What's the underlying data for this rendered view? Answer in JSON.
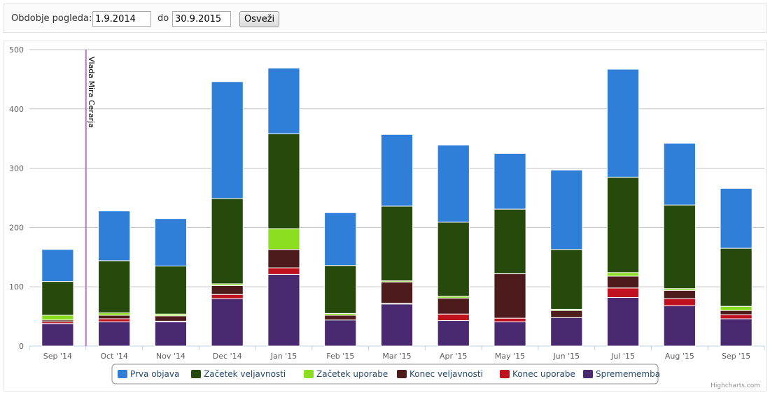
{
  "filter": {
    "label": "Obdobje pogleda:",
    "from_value": "1.9.2014",
    "to_label": "do",
    "to_value": "30.9.2015",
    "refresh_label": "Osveži"
  },
  "credits": "Highcharts.com",
  "colors": {
    "prva_objava": "#2f7ed8",
    "zacetek_veljavnosti": "#254a0c",
    "zacetek_uporabe": "#8bde1f",
    "konec_veljavnosti": "#4d1b1b",
    "konec_uporabe": "#c0111f",
    "sprememba": "#492970",
    "plot_line": "#b07bb8"
  },
  "chart_data": {
    "type": "bar",
    "stacked": true,
    "categories": [
      "Sep '14",
      "Oct '14",
      "Nov '14",
      "Dec '14",
      "Jan '15",
      "Feb '15",
      "Mar '15",
      "Apr '15",
      "May '15",
      "Jun '15",
      "Jul '15",
      "Aug '15",
      "Sep '15"
    ],
    "ylim": [
      0,
      500
    ],
    "yticks": [
      0,
      100,
      200,
      300,
      400,
      500
    ],
    "grid": true,
    "legend_position": "bottom-center",
    "plot_line": {
      "label": "Vlada Mira Cerarja",
      "at_category": "Sep '14"
    },
    "series": [
      {
        "name": "Spremememba",
        "key": "sprememba",
        "values": [
          38,
          41,
          41,
          80,
          121,
          44,
          71,
          43,
          41,
          48,
          82,
          68,
          46
        ]
      },
      {
        "name": "Konec uporabe",
        "key": "konec_uporabe",
        "values": [
          3,
          5,
          1,
          7,
          11,
          0,
          1,
          11,
          6,
          0,
          16,
          12,
          7
        ]
      },
      {
        "name": "Konec veljavnosti",
        "key": "konec_veljavnosti",
        "values": [
          3,
          6,
          9,
          15,
          31,
          8,
          36,
          27,
          75,
          12,
          20,
          14,
          7
        ]
      },
      {
        "name": "Začetek uporabe",
        "key": "zacetek_uporabe",
        "values": [
          8,
          4,
          3,
          3,
          35,
          3,
          2,
          3,
          0,
          2,
          6,
          3,
          7
        ]
      },
      {
        "name": "Začetek veljavnosti",
        "key": "zacetek_veljavnosti",
        "values": [
          57,
          88,
          81,
          144,
          160,
          81,
          126,
          125,
          109,
          101,
          161,
          141,
          98
        ]
      },
      {
        "name": "Prva objava",
        "key": "prva_objava",
        "values": [
          54,
          84,
          80,
          197,
          111,
          89,
          121,
          130,
          94,
          134,
          182,
          104,
          101
        ]
      }
    ],
    "legend_order": [
      "prva_objava",
      "zacetek_veljavnosti",
      "zacetek_uporabe",
      "konec_veljavnosti",
      "konec_uporabe",
      "sprememba"
    ]
  }
}
